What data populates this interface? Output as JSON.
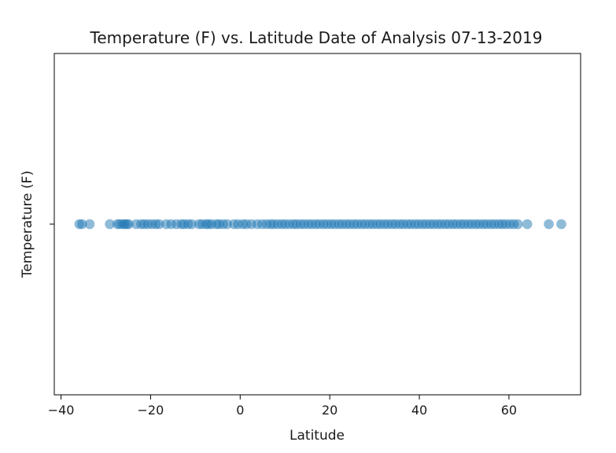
{
  "chart_data": {
    "type": "scatter",
    "title": "Temperature (F) vs. Latitude Date of Analysis 07-13-2019",
    "xlabel": "Latitude",
    "ylabel": "Temperature (F)",
    "xlim": [
      -41.5,
      76
    ],
    "x_ticks": [
      -40,
      -20,
      0,
      20,
      40,
      60
    ],
    "x_tick_labels": [
      "−40",
      "−20",
      "0",
      "20",
      "40",
      "60"
    ],
    "y_ticks": [
      ""
    ],
    "grid": false,
    "legend": "none",
    "colors": {
      "marker": "#1f77b4",
      "axis": "#000000",
      "text": "#1a1a1a"
    },
    "marker_opacity": 0.5,
    "series": [
      {
        "y": "",
        "x": [
          -35.9,
          -35.3,
          -33.6,
          -29.1,
          -27.4,
          -26.9,
          -26.2,
          -25.8,
          -25.3,
          -24.9,
          -23.2,
          -22.1,
          -21.4,
          -20.6,
          -19.7,
          -18.8,
          -18.1,
          -16.5,
          -15.4,
          -14.2,
          -13.1,
          -12.5,
          -11.6,
          -10.8,
          -9.2,
          -8.5,
          -7.6,
          -7.1,
          -6.4,
          -5.3,
          -4.7,
          -3.8,
          -2.9,
          -1.4,
          -0.5,
          0.6,
          1.4,
          2.5,
          3.8,
          4.9,
          5.9,
          6.8,
          7.5,
          8.4,
          9.3,
          10.1,
          11.0,
          11.9,
          12.6,
          13.5,
          14.3,
          15.2,
          16.0,
          16.9,
          17.7,
          18.6,
          19.4,
          20.3,
          21.1,
          22.0,
          22.8,
          23.7,
          24.5,
          25.4,
          26.2,
          27.1,
          27.9,
          28.8,
          29.6,
          30.5,
          31.3,
          32.2,
          33.0,
          33.9,
          34.7,
          35.6,
          36.4,
          37.3,
          38.1,
          39.0,
          39.8,
          40.7,
          41.5,
          42.4,
          43.2,
          44.1,
          44.9,
          45.8,
          46.6,
          47.5,
          48.3,
          49.2,
          50.0,
          50.9,
          51.7,
          52.6,
          53.4,
          54.3,
          55.1,
          56.0,
          56.8,
          57.7,
          58.5,
          59.3,
          60.2,
          61.1,
          62.0,
          64.1,
          68.9,
          71.7
        ]
      }
    ]
  }
}
